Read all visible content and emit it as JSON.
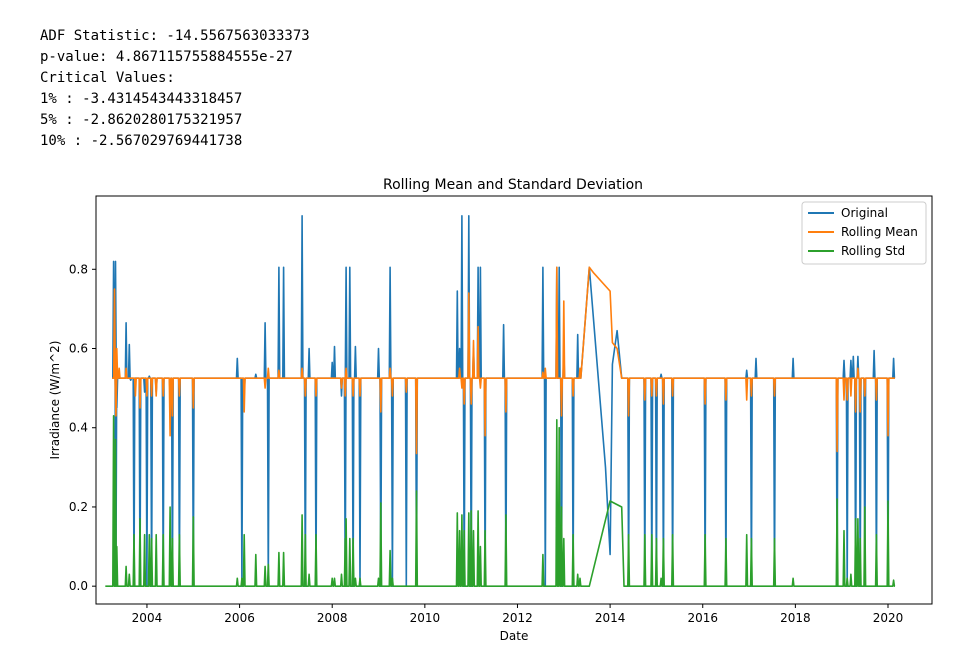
{
  "adf_output": {
    "statistic_line": "ADF Statistic: -14.5567563033373",
    "pvalue_line": "p-value: 4.867115755884555e-27",
    "critical_header": "Critical Values:",
    "crit_1": "1% : -3.4314543443318457",
    "crit_5": "5% : -2.8620280175321957",
    "crit_10": "10% : -2.567029769441738"
  },
  "chart_data": {
    "type": "line",
    "title": "Rolling Mean and Standard Deviation",
    "xlabel": "Date",
    "ylabel": "Irradiance (W/m^2)",
    "xlim": [
      2002.9,
      2020.95
    ],
    "ylim": [
      -0.045,
      0.985
    ],
    "xticks": [
      2004,
      2006,
      2008,
      2010,
      2012,
      2014,
      2016,
      2018,
      2020
    ],
    "yticks": [
      0.0,
      0.2,
      0.4,
      0.6,
      0.8
    ],
    "legend": {
      "placement": "top-right"
    },
    "grid": false,
    "series": [
      {
        "name": "Original",
        "color": "#1f77b4",
        "baseline": 0.525,
        "start": 2003.25,
        "end": 2020.15,
        "gap": [
          13.55,
          14.25
        ],
        "gap_path": [
          [
            2013.55,
            0.805
          ],
          [
            2013.9,
            0.3
          ],
          [
            2014.0,
            0.08
          ],
          [
            2014.05,
            0.56
          ],
          [
            2014.15,
            0.645
          ],
          [
            2014.25,
            0.525
          ]
        ],
        "events": [
          [
            2003.28,
            0.82
          ],
          [
            2003.32,
            0.82
          ],
          [
            2003.33,
            0.0
          ],
          [
            2003.35,
            0.45
          ],
          [
            2003.55,
            0.665
          ],
          [
            2003.62,
            0.61
          ],
          [
            2003.65,
            0.52
          ],
          [
            2003.72,
            0.0
          ],
          [
            2003.85,
            0.0
          ],
          [
            2003.95,
            0.49
          ],
          [
            2004.0,
            0.0
          ],
          [
            2004.05,
            0.53
          ],
          [
            2004.1,
            0.0
          ],
          [
            2004.2,
            0.49
          ],
          [
            2004.35,
            0.0
          ],
          [
            2004.5,
            0.49
          ],
          [
            2004.55,
            0.0
          ],
          [
            2004.7,
            0.0
          ],
          [
            2005.0,
            0.0
          ],
          [
            2005.95,
            0.575
          ],
          [
            2006.05,
            0.0
          ],
          [
            2006.1,
            0.48
          ],
          [
            2006.35,
            0.535
          ],
          [
            2006.55,
            0.665
          ],
          [
            2006.62,
            0.0
          ],
          [
            2006.85,
            0.805
          ],
          [
            2006.95,
            0.805
          ],
          [
            2007.35,
            0.935
          ],
          [
            2007.42,
            0.0
          ],
          [
            2007.5,
            0.6
          ],
          [
            2007.65,
            0.0
          ],
          [
            2008.0,
            0.565
          ],
          [
            2008.05,
            0.605
          ],
          [
            2008.2,
            0.48
          ],
          [
            2008.28,
            0.0
          ],
          [
            2008.3,
            0.805
          ],
          [
            2008.38,
            0.805
          ],
          [
            2008.45,
            0.0
          ],
          [
            2008.5,
            0.605
          ],
          [
            2008.6,
            0.0
          ],
          [
            2009.0,
            0.6
          ],
          [
            2009.05,
            0.0
          ],
          [
            2009.25,
            0.805
          ],
          [
            2009.3,
            0.0
          ],
          [
            2009.6,
            0.0
          ],
          [
            2009.82,
            0.0
          ],
          [
            2010.7,
            0.745
          ],
          [
            2010.75,
            0.6
          ],
          [
            2010.8,
            0.935
          ],
          [
            2010.85,
            0.0
          ],
          [
            2010.95,
            0.935
          ],
          [
            2011.0,
            0.0
          ],
          [
            2011.05,
            0.6
          ],
          [
            2011.15,
            0.805
          ],
          [
            2011.2,
            0.805
          ],
          [
            2011.3,
            0.0
          ],
          [
            2011.7,
            0.66
          ],
          [
            2011.75,
            0.0
          ],
          [
            2012.55,
            0.805
          ],
          [
            2012.6,
            0.0
          ],
          [
            2012.85,
            0.805
          ],
          [
            2012.9,
            0.805
          ],
          [
            2012.95,
            0.0
          ],
          [
            2013.0,
            0.595
          ],
          [
            2013.2,
            0.0
          ],
          [
            2013.3,
            0.635
          ],
          [
            2013.35,
            0.545
          ],
          [
            2014.4,
            0.0
          ],
          [
            2014.75,
            0.0
          ],
          [
            2014.9,
            0.0
          ],
          [
            2015.0,
            0.0
          ],
          [
            2015.1,
            0.535
          ],
          [
            2015.15,
            0.0
          ],
          [
            2015.35,
            0.0
          ],
          [
            2016.05,
            0.0
          ],
          [
            2016.5,
            0.0
          ],
          [
            2016.95,
            0.545
          ],
          [
            2017.05,
            0.0
          ],
          [
            2017.15,
            0.575
          ],
          [
            2017.55,
            0.0
          ],
          [
            2017.95,
            0.575
          ],
          [
            2018.9,
            0.0
          ],
          [
            2019.05,
            0.57
          ],
          [
            2019.12,
            0.0
          ],
          [
            2019.2,
            0.57
          ],
          [
            2019.25,
            0.58
          ],
          [
            2019.3,
            0.0
          ],
          [
            2019.35,
            0.58
          ],
          [
            2019.4,
            0.0
          ],
          [
            2019.5,
            0.0
          ],
          [
            2019.7,
            0.595
          ],
          [
            2019.75,
            0.0
          ],
          [
            2020.0,
            0.0
          ],
          [
            2020.12,
            0.575
          ]
        ]
      },
      {
        "name": "Rolling Mean",
        "color": "#ff7f0e",
        "baseline": 0.525,
        "start": 2003.25,
        "end": 2020.15,
        "gap": [
          13.55,
          14.25
        ],
        "gap_path": [
          [
            2013.55,
            0.805
          ],
          [
            2013.65,
            0.79
          ],
          [
            2014.0,
            0.745
          ],
          [
            2014.05,
            0.615
          ],
          [
            2014.15,
            0.6
          ],
          [
            2014.25,
            0.525
          ]
        ],
        "events": [
          [
            2003.3,
            0.75
          ],
          [
            2003.33,
            0.43
          ],
          [
            2003.35,
            0.6
          ],
          [
            2003.4,
            0.55
          ],
          [
            2003.55,
            0.55
          ],
          [
            2003.75,
            0.48
          ],
          [
            2003.85,
            0.45
          ],
          [
            2004.0,
            0.48
          ],
          [
            2004.1,
            0.48
          ],
          [
            2004.2,
            0.48
          ],
          [
            2004.35,
            0.48
          ],
          [
            2004.5,
            0.38
          ],
          [
            2004.55,
            0.43
          ],
          [
            2004.7,
            0.48
          ],
          [
            2005.0,
            0.45
          ],
          [
            2006.1,
            0.44
          ],
          [
            2006.55,
            0.5
          ],
          [
            2006.62,
            0.55
          ],
          [
            2006.85,
            0.545
          ],
          [
            2007.35,
            0.55
          ],
          [
            2007.42,
            0.48
          ],
          [
            2007.65,
            0.48
          ],
          [
            2008.2,
            0.5
          ],
          [
            2008.28,
            0.48
          ],
          [
            2008.3,
            0.55
          ],
          [
            2008.45,
            0.48
          ],
          [
            2008.6,
            0.48
          ],
          [
            2009.05,
            0.44
          ],
          [
            2009.25,
            0.55
          ],
          [
            2009.3,
            0.48
          ],
          [
            2009.6,
            0.49
          ],
          [
            2009.82,
            0.335
          ],
          [
            2010.75,
            0.55
          ],
          [
            2010.8,
            0.5
          ],
          [
            2010.85,
            0.46
          ],
          [
            2010.95,
            0.74
          ],
          [
            2011.0,
            0.46
          ],
          [
            2011.05,
            0.62
          ],
          [
            2011.15,
            0.655
          ],
          [
            2011.2,
            0.5
          ],
          [
            2011.3,
            0.38
          ],
          [
            2011.75,
            0.44
          ],
          [
            2012.55,
            0.54
          ],
          [
            2012.6,
            0.55
          ],
          [
            2012.85,
            0.805
          ],
          [
            2012.95,
            0.43
          ],
          [
            2013.0,
            0.72
          ],
          [
            2013.2,
            0.48
          ],
          [
            2013.35,
            0.55
          ],
          [
            2014.4,
            0.43
          ],
          [
            2014.75,
            0.47
          ],
          [
            2014.9,
            0.48
          ],
          [
            2015.0,
            0.48
          ],
          [
            2015.15,
            0.46
          ],
          [
            2015.35,
            0.48
          ],
          [
            2016.05,
            0.46
          ],
          [
            2016.5,
            0.47
          ],
          [
            2016.95,
            0.47
          ],
          [
            2017.05,
            0.48
          ],
          [
            2017.55,
            0.48
          ],
          [
            2018.9,
            0.34
          ],
          [
            2019.05,
            0.47
          ],
          [
            2019.12,
            0.47
          ],
          [
            2019.2,
            0.48
          ],
          [
            2019.3,
            0.44
          ],
          [
            2019.35,
            0.55
          ],
          [
            2019.4,
            0.44
          ],
          [
            2019.5,
            0.48
          ],
          [
            2019.75,
            0.47
          ],
          [
            2020.0,
            0.38
          ]
        ]
      },
      {
        "name": "Rolling Std",
        "color": "#2ca02c",
        "baseline": 0.0,
        "start": 2003.1,
        "end": 2020.15,
        "gap": [
          13.55,
          14.25
        ],
        "gap_path": [
          [
            2013.55,
            0.0
          ],
          [
            2014.0,
            0.215
          ],
          [
            2014.25,
            0.2
          ],
          [
            2014.3,
            0.0
          ]
        ],
        "events": [
          [
            2003.28,
            0.43
          ],
          [
            2003.32,
            0.37
          ],
          [
            2003.35,
            0.1
          ],
          [
            2003.55,
            0.05
          ],
          [
            2003.62,
            0.03
          ],
          [
            2003.72,
            0.13
          ],
          [
            2003.85,
            0.17
          ],
          [
            2003.95,
            0.13
          ],
          [
            2004.05,
            0.13
          ],
          [
            2004.1,
            0.12
          ],
          [
            2004.2,
            0.13
          ],
          [
            2004.35,
            0.13
          ],
          [
            2004.5,
            0.2
          ],
          [
            2004.55,
            0.12
          ],
          [
            2004.7,
            0.13
          ],
          [
            2005.0,
            0.175
          ],
          [
            2005.95,
            0.02
          ],
          [
            2006.05,
            0.02
          ],
          [
            2006.1,
            0.13
          ],
          [
            2006.35,
            0.08
          ],
          [
            2006.55,
            0.05
          ],
          [
            2006.62,
            0.055
          ],
          [
            2006.85,
            0.085
          ],
          [
            2006.95,
            0.085
          ],
          [
            2007.35,
            0.18
          ],
          [
            2007.42,
            0.13
          ],
          [
            2007.5,
            0.03
          ],
          [
            2007.65,
            0.13
          ],
          [
            2008.0,
            0.02
          ],
          [
            2008.05,
            0.02
          ],
          [
            2008.2,
            0.03
          ],
          [
            2008.28,
            0.12
          ],
          [
            2008.3,
            0.17
          ],
          [
            2008.38,
            0.12
          ],
          [
            2008.45,
            0.12
          ],
          [
            2008.5,
            0.02
          ],
          [
            2008.6,
            0.02
          ],
          [
            2009.0,
            0.02
          ],
          [
            2009.05,
            0.21
          ],
          [
            2009.25,
            0.09
          ],
          [
            2009.3,
            0.02
          ],
          [
            2009.82,
            0.24
          ],
          [
            2010.7,
            0.185
          ],
          [
            2010.75,
            0.14
          ],
          [
            2010.8,
            0.18
          ],
          [
            2010.85,
            0.14
          ],
          [
            2010.95,
            0.185
          ],
          [
            2011.0,
            0.19
          ],
          [
            2011.05,
            0.14
          ],
          [
            2011.15,
            0.19
          ],
          [
            2011.2,
            0.1
          ],
          [
            2011.3,
            0.14
          ],
          [
            2011.75,
            0.18
          ],
          [
            2012.55,
            0.08
          ],
          [
            2012.85,
            0.42
          ],
          [
            2012.9,
            0.4
          ],
          [
            2012.95,
            0.2
          ],
          [
            2013.0,
            0.12
          ],
          [
            2013.2,
            0.13
          ],
          [
            2013.3,
            0.03
          ],
          [
            2013.35,
            0.02
          ],
          [
            2014.4,
            0.13
          ],
          [
            2014.75,
            0.13
          ],
          [
            2014.9,
            0.13
          ],
          [
            2015.0,
            0.12
          ],
          [
            2015.1,
            0.02
          ],
          [
            2015.15,
            0.12
          ],
          [
            2015.35,
            0.13
          ],
          [
            2016.05,
            0.13
          ],
          [
            2016.5,
            0.12
          ],
          [
            2016.95,
            0.13
          ],
          [
            2017.05,
            0.12
          ],
          [
            2017.55,
            0.12
          ],
          [
            2017.95,
            0.02
          ],
          [
            2018.9,
            0.22
          ],
          [
            2019.05,
            0.14
          ],
          [
            2019.12,
            0.02
          ],
          [
            2019.2,
            0.03
          ],
          [
            2019.3,
            0.17
          ],
          [
            2019.35,
            0.17
          ],
          [
            2019.4,
            0.12
          ],
          [
            2019.5,
            0.2
          ],
          [
            2019.75,
            0.13
          ],
          [
            2020.0,
            0.215
          ],
          [
            2020.12,
            0.015
          ]
        ]
      }
    ]
  }
}
